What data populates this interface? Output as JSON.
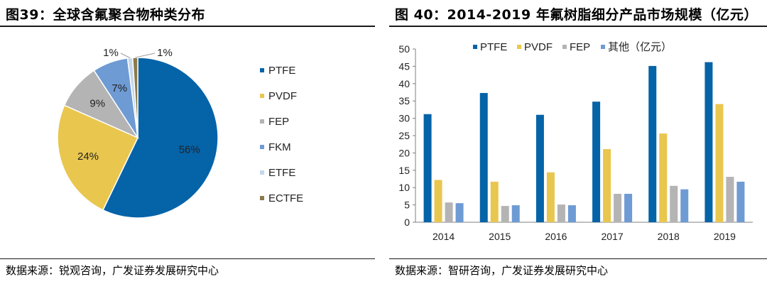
{
  "left": {
    "title": "图39：全球含氟聚合物种类分布",
    "source": "数据来源：锐观咨询，广发证券发展研究中心"
  },
  "right": {
    "title": "图 40：2014-2019 年氟树脂细分产品市场规模（亿元）",
    "source": "数据来源：智研咨询，广发证券发展研究中心"
  },
  "chart_data": [
    {
      "type": "pie",
      "title": "全球含氟聚合物种类分布",
      "legend_position": "right",
      "slices": [
        {
          "label": "PTFE",
          "value": 56,
          "display": "56%",
          "color": "#0563a8"
        },
        {
          "label": "PVDF",
          "value": 24,
          "display": "24%",
          "color": "#e9c64e"
        },
        {
          "label": "FEP",
          "value": 9,
          "display": "9%",
          "color": "#b4b4b4"
        },
        {
          "label": "FKM",
          "value": 7,
          "display": "7%",
          "color": "#6e9bd4"
        },
        {
          "label": "ETFE",
          "value": 1,
          "display": "1%",
          "color": "#c4d8ee"
        },
        {
          "label": "ECTFE",
          "value": 1,
          "display": "1%",
          "color": "#8a7a4a"
        }
      ]
    },
    {
      "type": "bar",
      "title": "2014-2019 年氟树脂细分产品市场规模（亿元）",
      "categories": [
        "2014",
        "2015",
        "2016",
        "2017",
        "2018",
        "2019"
      ],
      "series": [
        {
          "name": "PTFE",
          "color": "#0563a8",
          "values": [
            31.2,
            37.3,
            31.0,
            34.8,
            45.1,
            46.2
          ]
        },
        {
          "name": "PVDF",
          "color": "#e9c64e",
          "values": [
            12.2,
            11.7,
            14.4,
            21.1,
            25.6,
            34.1
          ]
        },
        {
          "name": "FEP",
          "color": "#b4b4b4",
          "values": [
            5.7,
            4.7,
            5.1,
            8.2,
            10.5,
            13.1
          ]
        },
        {
          "name": "其他（亿元）",
          "color": "#6e9bd4",
          "values": [
            5.5,
            4.9,
            4.9,
            8.2,
            9.5,
            11.7
          ]
        }
      ],
      "ylim": [
        0,
        50
      ],
      "yticks": [
        "0",
        "5",
        "10",
        "15",
        "20",
        "25",
        "30",
        "35",
        "40",
        "45",
        "50"
      ],
      "legend_position": "top",
      "grid": false
    }
  ]
}
